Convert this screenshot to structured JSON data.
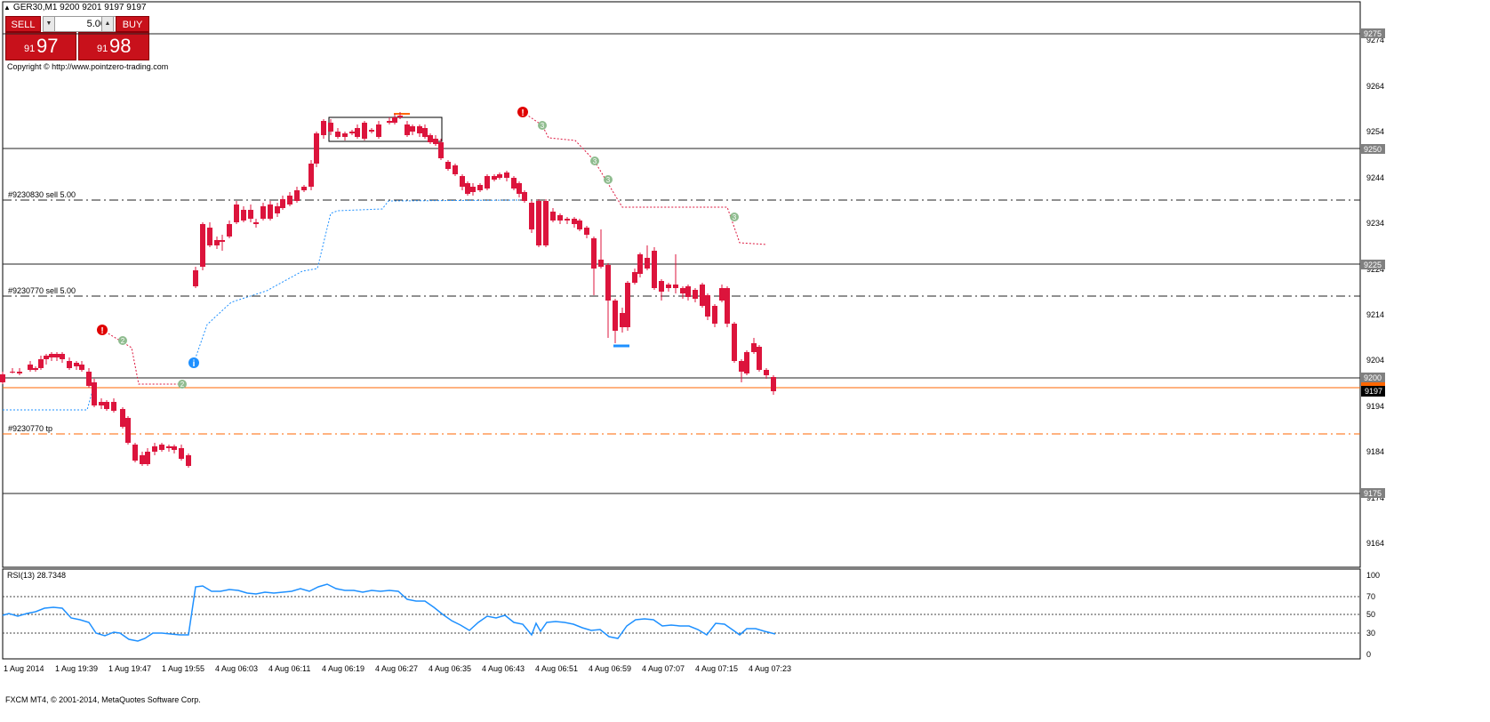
{
  "header": {
    "title": "GER30,M1  9200 9201 9197 9197"
  },
  "trade_panel": {
    "sell_label": "SELL",
    "buy_label": "BUY",
    "lot_value": "5.00",
    "sell_price_small": "91",
    "sell_price_big": "97",
    "buy_price_small": "91",
    "buy_price_big": "98"
  },
  "copyright": "Copyright © http://www.pointzero-trading.com",
  "order_labels": {
    "sell1": "#9230830 sell 5.00",
    "sell2": "#9230770 sell 5.00",
    "tp": "#9230770 tp"
  },
  "price_axis": {
    "ticks": [
      "9274",
      "9264",
      "9254",
      "9244",
      "9234",
      "9224",
      "9214",
      "9204",
      "9194",
      "9184",
      "9174",
      "9164"
    ],
    "level_tags": [
      "9275",
      "9250",
      "9225",
      "9200",
      "9175"
    ],
    "current_price": "9197"
  },
  "rsi": {
    "label": "RSI(13) 28.7348",
    "ticks": [
      "100",
      "70",
      "50",
      "30",
      "0"
    ]
  },
  "time_axis": {
    "ticks": [
      "1 Aug 2014",
      "1 Aug 19:39",
      "1 Aug 19:47",
      "1 Aug 19:55",
      "4 Aug 06:03",
      "4 Aug 06:11",
      "4 Aug 06:19",
      "4 Aug 06:27",
      "4 Aug 06:35",
      "4 Aug 06:43",
      "4 Aug 06:51",
      "4 Aug 06:59",
      "4 Aug 07:07",
      "4 Aug 07:15",
      "4 Aug 07:23"
    ]
  },
  "footer": "FXCM MT4, © 2001-2014, MetaQuotes Software Corp.",
  "markers": {
    "exclaim": "!",
    "info": "i",
    "two": "2",
    "three": "3"
  },
  "colors": {
    "bull": "#2e8b57",
    "bear": "#dc143c",
    "rsi": "#1e90ff",
    "current_line": "#ff6600",
    "sell_button": "#c8111b"
  }
}
